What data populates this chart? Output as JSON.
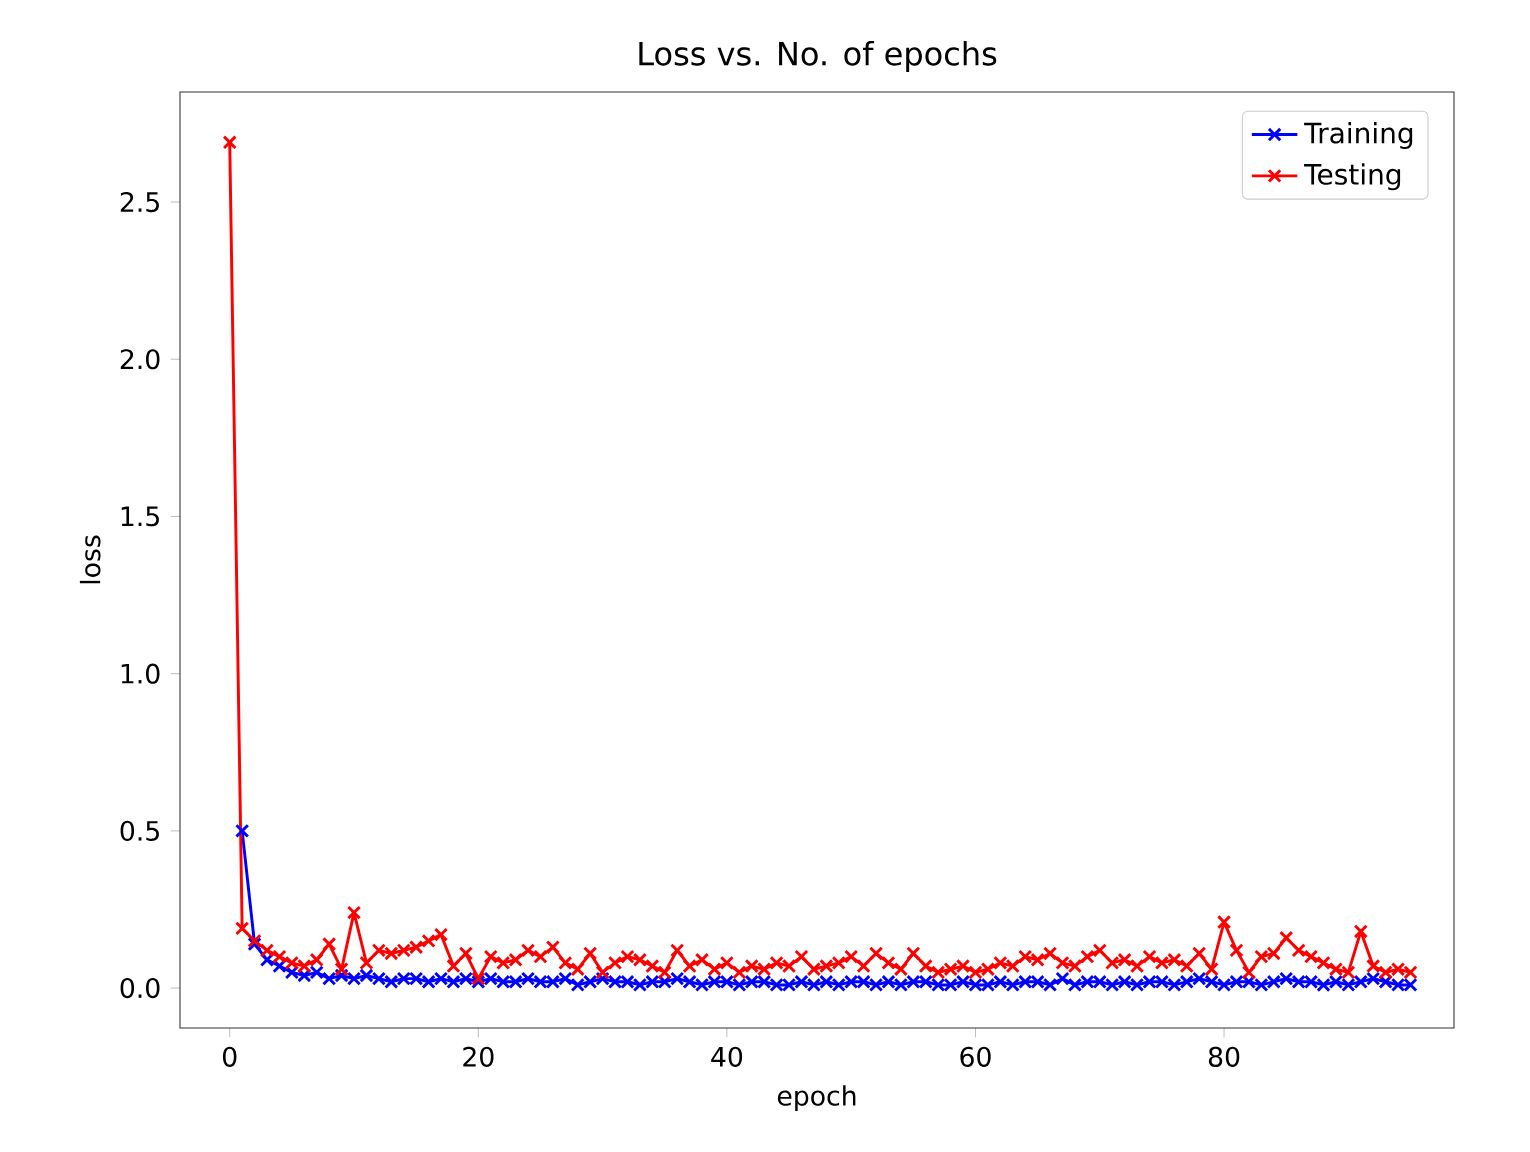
{
  "chart_data": {
    "type": "line",
    "title": "Loss vs. No. of epochs",
    "xlabel": "epoch",
    "ylabel": "loss",
    "x": [
      0,
      1,
      2,
      3,
      4,
      5,
      6,
      7,
      8,
      9,
      10,
      11,
      12,
      13,
      14,
      15,
      16,
      17,
      18,
      19,
      20,
      21,
      22,
      23,
      24,
      25,
      26,
      27,
      28,
      29,
      30,
      31,
      32,
      33,
      34,
      35,
      36,
      37,
      38,
      39,
      40,
      41,
      42,
      43,
      44,
      45,
      46,
      47,
      48,
      49,
      50,
      51,
      52,
      53,
      54,
      55,
      56,
      57,
      58,
      59,
      60,
      61,
      62,
      63,
      64,
      65,
      66,
      67,
      68,
      69,
      70,
      71,
      72,
      73,
      74,
      75,
      76,
      77,
      78,
      79,
      80,
      81,
      82,
      83,
      84,
      85,
      86,
      87,
      88,
      89,
      90,
      91,
      92,
      93,
      94,
      95
    ],
    "series": [
      {
        "name": "Training",
        "color": "#0000ff",
        "values": [
          null,
          0.5,
          0.14,
          0.09,
          0.07,
          0.05,
          0.04,
          0.05,
          0.03,
          0.04,
          0.03,
          0.04,
          0.03,
          0.02,
          0.03,
          0.03,
          0.02,
          0.03,
          0.02,
          0.03,
          0.02,
          0.03,
          0.02,
          0.02,
          0.03,
          0.02,
          0.02,
          0.03,
          0.01,
          0.02,
          0.03,
          0.02,
          0.02,
          0.01,
          0.02,
          0.02,
          0.03,
          0.02,
          0.01,
          0.02,
          0.02,
          0.01,
          0.02,
          0.02,
          0.01,
          0.01,
          0.02,
          0.01,
          0.02,
          0.01,
          0.02,
          0.02,
          0.01,
          0.02,
          0.01,
          0.02,
          0.02,
          0.01,
          0.01,
          0.02,
          0.01,
          0.01,
          0.02,
          0.01,
          0.02,
          0.02,
          0.01,
          0.03,
          0.01,
          0.02,
          0.02,
          0.01,
          0.02,
          0.01,
          0.02,
          0.02,
          0.01,
          0.02,
          0.03,
          0.02,
          0.01,
          0.02,
          0.02,
          0.01,
          0.02,
          0.03,
          0.02,
          0.02,
          0.01,
          0.02,
          0.01,
          0.02,
          0.03,
          0.02,
          0.01,
          0.01
        ]
      },
      {
        "name": "Testing",
        "color": "#ff0000",
        "values": [
          2.69,
          0.19,
          0.15,
          0.12,
          0.1,
          0.08,
          0.07,
          0.09,
          0.14,
          0.06,
          0.24,
          0.08,
          0.12,
          0.11,
          0.12,
          0.13,
          0.15,
          0.17,
          0.07,
          0.11,
          0.03,
          0.1,
          0.08,
          0.09,
          0.12,
          0.1,
          0.13,
          0.08,
          0.06,
          0.11,
          0.05,
          0.08,
          0.1,
          0.09,
          0.07,
          0.05,
          0.12,
          0.07,
          0.09,
          0.06,
          0.08,
          0.05,
          0.07,
          0.06,
          0.08,
          0.07,
          0.1,
          0.06,
          0.07,
          0.08,
          0.1,
          0.07,
          0.11,
          0.08,
          0.06,
          0.11,
          0.07,
          0.05,
          0.06,
          0.07,
          0.05,
          0.06,
          0.08,
          0.07,
          0.1,
          0.09,
          0.11,
          0.08,
          0.07,
          0.1,
          0.12,
          0.08,
          0.09,
          0.07,
          0.1,
          0.08,
          0.09,
          0.07,
          0.11,
          0.06,
          0.21,
          0.12,
          0.05,
          0.1,
          0.11,
          0.16,
          0.12,
          0.1,
          0.08,
          0.06,
          0.05,
          0.18,
          0.07,
          0.05,
          0.06,
          0.05
        ]
      }
    ],
    "xlim": [
      -4.0,
      98.5
    ],
    "ylim": [
      -0.127,
      2.85
    ],
    "xticks": [
      0,
      20,
      40,
      60,
      80
    ],
    "yticks": [
      {
        "value": 0,
        "label": "0.0"
      },
      {
        "value": 0.5,
        "label": "0.5"
      },
      {
        "value": 1.0,
        "label": "1.0"
      },
      {
        "value": 1.5,
        "label": "1.5"
      },
      {
        "value": 2.0,
        "label": "2.0"
      },
      {
        "value": 2.5,
        "label": "2.5"
      }
    ],
    "marker": "cross",
    "line_style": "solid",
    "legend": "top right",
    "grid": false
  }
}
